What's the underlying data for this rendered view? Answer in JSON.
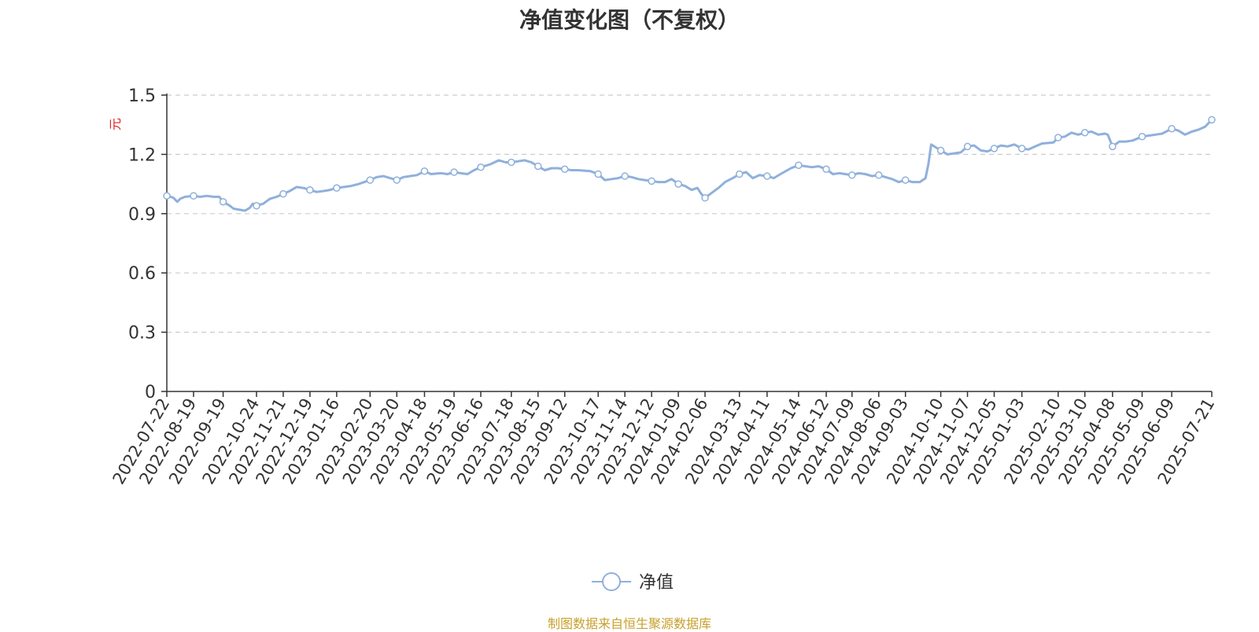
{
  "colors": {
    "line": "#8fb0dc",
    "axis": "#333333",
    "grid": "#cccccc",
    "unit": "#e02020",
    "source": "#c8a02c",
    "title": "#333333"
  },
  "legend": {
    "placement": "bottom-center",
    "icon": "circle-line-icon"
  },
  "source": "制图数据来自恒生聚源数据库",
  "chart_data": {
    "type": "line",
    "title": "净值变化图（不复权）",
    "ylabel": "元",
    "xlabel": "",
    "ylim": [
      0,
      1.5
    ],
    "yticks": [
      "0",
      "0.3",
      "0.6",
      "0.9",
      "1.2",
      "1.5"
    ],
    "xlim": [
      "2022-07-22",
      "2025-07-21"
    ],
    "grid": true,
    "categories": [
      "2022-07-22",
      "2022-08-19",
      "2022-09-19",
      "2022-10-24",
      "2022-11-21",
      "2022-12-19",
      "2023-01-16",
      "2023-02-20",
      "2023-03-20",
      "2023-04-18",
      "2023-05-19",
      "2023-06-16",
      "2023-07-18",
      "2023-08-15",
      "2023-09-12",
      "2023-10-17",
      "2023-11-14",
      "2023-12-12",
      "2024-01-09",
      "2024-02-06",
      "2024-03-13",
      "2024-04-11",
      "2024-05-14",
      "2024-06-12",
      "2024-07-09",
      "2024-08-06",
      "2024-09-03",
      "2024-10-10",
      "2024-11-07",
      "2024-12-05",
      "2025-01-03",
      "2025-02-10",
      "2025-03-10",
      "2025-04-08",
      "2025-05-09",
      "2025-06-09",
      "2025-07-21"
    ],
    "series": [
      {
        "name": "净值",
        "points": [
          [
            "2022-07-22",
            0.99
          ],
          [
            "2022-07-26",
            0.985
          ],
          [
            "2022-07-29",
            0.98
          ],
          [
            "2022-08-02",
            0.96
          ],
          [
            "2022-08-05",
            0.975
          ],
          [
            "2022-08-10",
            0.985
          ],
          [
            "2022-08-19",
            0.99
          ],
          [
            "2022-08-26",
            0.985
          ],
          [
            "2022-09-02",
            0.99
          ],
          [
            "2022-09-09",
            0.985
          ],
          [
            "2022-09-15",
            0.985
          ],
          [
            "2022-09-19",
            0.96
          ],
          [
            "2022-09-26",
            0.94
          ],
          [
            "2022-09-30",
            0.925
          ],
          [
            "2022-10-12",
            0.915
          ],
          [
            "2022-10-17",
            0.93
          ],
          [
            "2022-10-20",
            0.95
          ],
          [
            "2022-10-24",
            0.94
          ],
          [
            "2022-10-31",
            0.95
          ],
          [
            "2022-11-07",
            0.975
          ],
          [
            "2022-11-14",
            0.985
          ],
          [
            "2022-11-21",
            1.0
          ],
          [
            "2022-11-28",
            1.015
          ],
          [
            "2022-12-05",
            1.035
          ],
          [
            "2022-12-12",
            1.03
          ],
          [
            "2022-12-19",
            1.02
          ],
          [
            "2022-12-26",
            1.01
          ],
          [
            "2023-01-03",
            1.015
          ],
          [
            "2023-01-09",
            1.02
          ],
          [
            "2023-01-16",
            1.03
          ],
          [
            "2023-01-31",
            1.04
          ],
          [
            "2023-02-08",
            1.05
          ],
          [
            "2023-02-20",
            1.07
          ],
          [
            "2023-02-27",
            1.085
          ],
          [
            "2023-03-06",
            1.09
          ],
          [
            "2023-03-13",
            1.08
          ],
          [
            "2023-03-20",
            1.07
          ],
          [
            "2023-03-27",
            1.085
          ],
          [
            "2023-04-03",
            1.09
          ],
          [
            "2023-04-10",
            1.095
          ],
          [
            "2023-04-18",
            1.115
          ],
          [
            "2023-04-25",
            1.1
          ],
          [
            "2023-05-05",
            1.105
          ],
          [
            "2023-05-12",
            1.1
          ],
          [
            "2023-05-19",
            1.11
          ],
          [
            "2023-05-26",
            1.105
          ],
          [
            "2023-06-02",
            1.1
          ],
          [
            "2023-06-09",
            1.12
          ],
          [
            "2023-06-16",
            1.135
          ],
          [
            "2023-06-26",
            1.15
          ],
          [
            "2023-07-05",
            1.17
          ],
          [
            "2023-07-12",
            1.16
          ],
          [
            "2023-07-18",
            1.16
          ],
          [
            "2023-07-25",
            1.165
          ],
          [
            "2023-08-01",
            1.17
          ],
          [
            "2023-08-08",
            1.16
          ],
          [
            "2023-08-15",
            1.14
          ],
          [
            "2023-08-22",
            1.12
          ],
          [
            "2023-08-29",
            1.13
          ],
          [
            "2023-09-05",
            1.13
          ],
          [
            "2023-09-12",
            1.125
          ],
          [
            "2023-09-19",
            1.12
          ],
          [
            "2023-09-26",
            1.12
          ],
          [
            "2023-10-09",
            1.115
          ],
          [
            "2023-10-17",
            1.1
          ],
          [
            "2023-10-24",
            1.07
          ],
          [
            "2023-10-31",
            1.075
          ],
          [
            "2023-11-07",
            1.08
          ],
          [
            "2023-11-14",
            1.09
          ],
          [
            "2023-11-21",
            1.085
          ],
          [
            "2023-11-28",
            1.075
          ],
          [
            "2023-12-05",
            1.07
          ],
          [
            "2023-12-12",
            1.065
          ],
          [
            "2023-12-19",
            1.06
          ],
          [
            "2023-12-26",
            1.06
          ],
          [
            "2024-01-02",
            1.075
          ],
          [
            "2024-01-09",
            1.05
          ],
          [
            "2024-01-16",
            1.04
          ],
          [
            "2024-01-23",
            1.02
          ],
          [
            "2024-01-29",
            1.03
          ],
          [
            "2024-02-02",
            1.0
          ],
          [
            "2024-02-06",
            0.98
          ],
          [
            "2024-02-20",
            1.03
          ],
          [
            "2024-02-27",
            1.06
          ],
          [
            "2024-03-06",
            1.08
          ],
          [
            "2024-03-13",
            1.1
          ],
          [
            "2024-03-20",
            1.11
          ],
          [
            "2024-03-27",
            1.08
          ],
          [
            "2024-04-03",
            1.095
          ],
          [
            "2024-04-11",
            1.09
          ],
          [
            "2024-04-18",
            1.08
          ],
          [
            "2024-04-25",
            1.1
          ],
          [
            "2024-05-06",
            1.13
          ],
          [
            "2024-05-14",
            1.145
          ],
          [
            "2024-05-21",
            1.14
          ],
          [
            "2024-05-28",
            1.135
          ],
          [
            "2024-06-04",
            1.14
          ],
          [
            "2024-06-12",
            1.125
          ],
          [
            "2024-06-19",
            1.1
          ],
          [
            "2024-06-26",
            1.105
          ],
          [
            "2024-07-02",
            1.1
          ],
          [
            "2024-07-09",
            1.095
          ],
          [
            "2024-07-16",
            1.105
          ],
          [
            "2024-07-23",
            1.1
          ],
          [
            "2024-07-30",
            1.09
          ],
          [
            "2024-08-06",
            1.095
          ],
          [
            "2024-08-13",
            1.085
          ],
          [
            "2024-08-20",
            1.075
          ],
          [
            "2024-08-27",
            1.06
          ],
          [
            "2024-09-03",
            1.07
          ],
          [
            "2024-09-10",
            1.06
          ],
          [
            "2024-09-18",
            1.06
          ],
          [
            "2024-09-24",
            1.08
          ],
          [
            "2024-09-27",
            1.15
          ],
          [
            "2024-09-30",
            1.25
          ],
          [
            "2024-10-10",
            1.22
          ],
          [
            "2024-10-17",
            1.2
          ],
          [
            "2024-10-24",
            1.205
          ],
          [
            "2024-10-31",
            1.21
          ],
          [
            "2024-11-07",
            1.24
          ],
          [
            "2024-11-14",
            1.245
          ],
          [
            "2024-11-21",
            1.22
          ],
          [
            "2024-11-28",
            1.215
          ],
          [
            "2024-12-05",
            1.23
          ],
          [
            "2024-12-12",
            1.245
          ],
          [
            "2024-12-19",
            1.24
          ],
          [
            "2024-12-26",
            1.25
          ],
          [
            "2025-01-03",
            1.23
          ],
          [
            "2025-01-10",
            1.225
          ],
          [
            "2025-01-17",
            1.24
          ],
          [
            "2025-01-24",
            1.255
          ],
          [
            "2025-02-05",
            1.26
          ],
          [
            "2025-02-10",
            1.285
          ],
          [
            "2025-02-17",
            1.29
          ],
          [
            "2025-02-24",
            1.31
          ],
          [
            "2025-03-03",
            1.3
          ],
          [
            "2025-03-10",
            1.31
          ],
          [
            "2025-03-17",
            1.315
          ],
          [
            "2025-03-24",
            1.3
          ],
          [
            "2025-03-31",
            1.305
          ],
          [
            "2025-04-03",
            1.3
          ],
          [
            "2025-04-08",
            1.24
          ],
          [
            "2025-04-15",
            1.265
          ],
          [
            "2025-04-22",
            1.265
          ],
          [
            "2025-04-29",
            1.27
          ],
          [
            "2025-05-09",
            1.29
          ],
          [
            "2025-05-16",
            1.295
          ],
          [
            "2025-05-23",
            1.3
          ],
          [
            "2025-05-30",
            1.305
          ],
          [
            "2025-06-09",
            1.33
          ],
          [
            "2025-06-16",
            1.32
          ],
          [
            "2025-06-23",
            1.3
          ],
          [
            "2025-06-30",
            1.315
          ],
          [
            "2025-07-07",
            1.325
          ],
          [
            "2025-07-14",
            1.34
          ],
          [
            "2025-07-21",
            1.375
          ]
        ]
      }
    ]
  }
}
